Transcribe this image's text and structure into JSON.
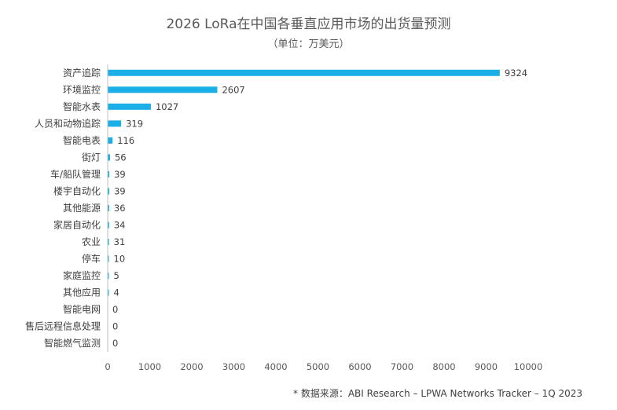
{
  "chart_data": {
    "type": "bar",
    "orientation": "horizontal",
    "title": "2026 LoRa在中国各垂直应用市场的出货量预测",
    "subtitle": "（单位：万美元）",
    "categories": [
      "资产追踪",
      "环境监控",
      "智能水表",
      "人员和动物追踪",
      "智能电表",
      "街灯",
      "车/船队管理",
      "楼宇自动化",
      "其他能源",
      "家居自动化",
      "农业",
      "停车",
      "家庭监控",
      "其他应用",
      "智能电网",
      "售后远程信息处理",
      "智能燃气监测"
    ],
    "values": [
      9324,
      2607,
      1027,
      319,
      116,
      56,
      39,
      39,
      36,
      34,
      31,
      10,
      5,
      4,
      0,
      0,
      0
    ],
    "xlim": [
      0,
      10000
    ],
    "xticks": [
      0,
      1000,
      2000,
      3000,
      4000,
      5000,
      6000,
      7000,
      8000,
      9000,
      10000
    ],
    "bar_color": "#1aafe6",
    "grid": false
  },
  "source": "* 数据来源：ABI Research – LPWA Networks Tracker – 1Q 2023"
}
